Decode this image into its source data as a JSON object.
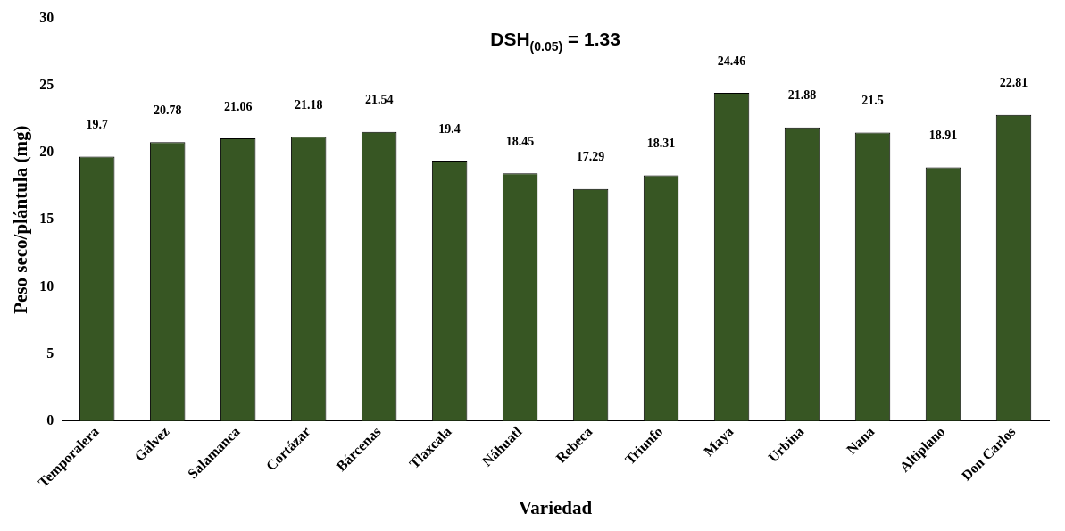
{
  "chart_data": {
    "type": "bar",
    "xlabel": "Variedad",
    "ylabel": "Peso seco/plántula (mg)",
    "categories": [
      "Temporalera",
      "Gálvez",
      "Salamanca",
      "Cortázar",
      "Bárcenas",
      "Tlaxcala",
      "Náhuatl",
      "Rebeca",
      "Triunfo",
      "Maya",
      "Urbina",
      "Nana",
      "Altiplano",
      "Don Carlos"
    ],
    "values": [
      19.7,
      20.78,
      21.06,
      21.18,
      21.54,
      19.4,
      18.45,
      17.29,
      18.31,
      24.46,
      21.88,
      21.5,
      18.91,
      22.81
    ],
    "color": "#375623",
    "ylim": [
      0,
      30
    ],
    "yticks": [
      0,
      5,
      10,
      15,
      20,
      25,
      30
    ],
    "grid": false,
    "legend": false,
    "data_labels": true,
    "annotations": [
      "DSH$_{(0.05)}$ = 1.33"
    ]
  }
}
